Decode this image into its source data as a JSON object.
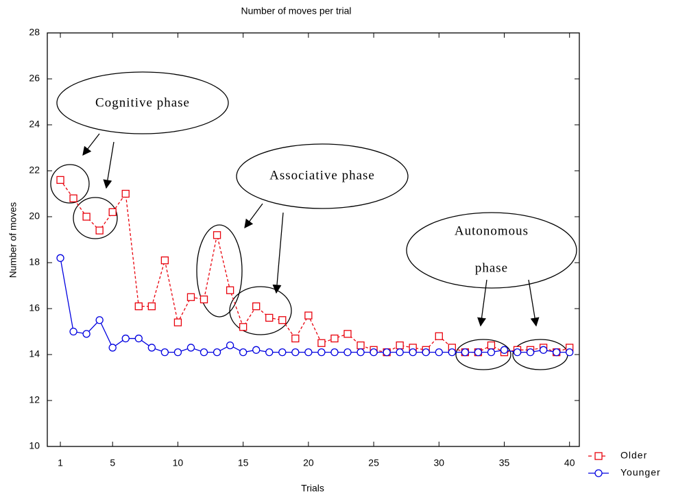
{
  "chart_data": {
    "type": "line",
    "title": "Number of moves per trial",
    "x_label": "Trials",
    "y_label": "Number of moves",
    "x": [
      1,
      2,
      3,
      4,
      5,
      6,
      7,
      8,
      9,
      10,
      11,
      12,
      13,
      14,
      15,
      16,
      17,
      18,
      19,
      20,
      21,
      22,
      23,
      24,
      25,
      26,
      27,
      28,
      29,
      30,
      31,
      32,
      33,
      34,
      35,
      36,
      37,
      38,
      39,
      40
    ],
    "series": [
      {
        "name": "Older",
        "color": "#e8000b",
        "line_style": "dashed",
        "marker": "square",
        "values": [
          21.6,
          20.8,
          20.0,
          19.4,
          20.2,
          21.0,
          16.1,
          16.1,
          18.1,
          15.4,
          16.5,
          16.4,
          19.2,
          16.8,
          15.2,
          16.1,
          15.6,
          15.5,
          14.7,
          15.7,
          14.5,
          14.7,
          14.9,
          14.4,
          14.2,
          14.1,
          14.4,
          14.3,
          14.2,
          14.8,
          14.3,
          14.1,
          14.1,
          14.4,
          14.1,
          14.2,
          14.2,
          14.3,
          14.1,
          14.3
        ]
      },
      {
        "name": "Younger",
        "color": "#0000e0",
        "line_style": "solid",
        "marker": "circle",
        "values": [
          18.2,
          15.0,
          14.9,
          15.5,
          14.3,
          14.7,
          14.7,
          14.3,
          14.1,
          14.1,
          14.3,
          14.1,
          14.1,
          14.4,
          14.1,
          14.2,
          14.1,
          14.1,
          14.1,
          14.1,
          14.1,
          14.1,
          14.1,
          14.1,
          14.1,
          14.1,
          14.1,
          14.1,
          14.1,
          14.1,
          14.1,
          14.1,
          14.1,
          14.1,
          14.2,
          14.1,
          14.1,
          14.2,
          14.1,
          14.1
        ]
      }
    ],
    "xlim": [
      0,
      40.75
    ],
    "xticks": [
      1,
      5,
      10,
      15,
      20,
      25,
      30,
      35,
      40
    ],
    "ylim": [
      10,
      28
    ],
    "yticks": [
      10,
      12,
      14,
      16,
      18,
      20,
      22,
      24,
      26,
      28
    ],
    "legend": "bottom-right",
    "annotations": [
      "Cognitive phase",
      "Associative phase",
      "Autonomous",
      "phase"
    ]
  }
}
